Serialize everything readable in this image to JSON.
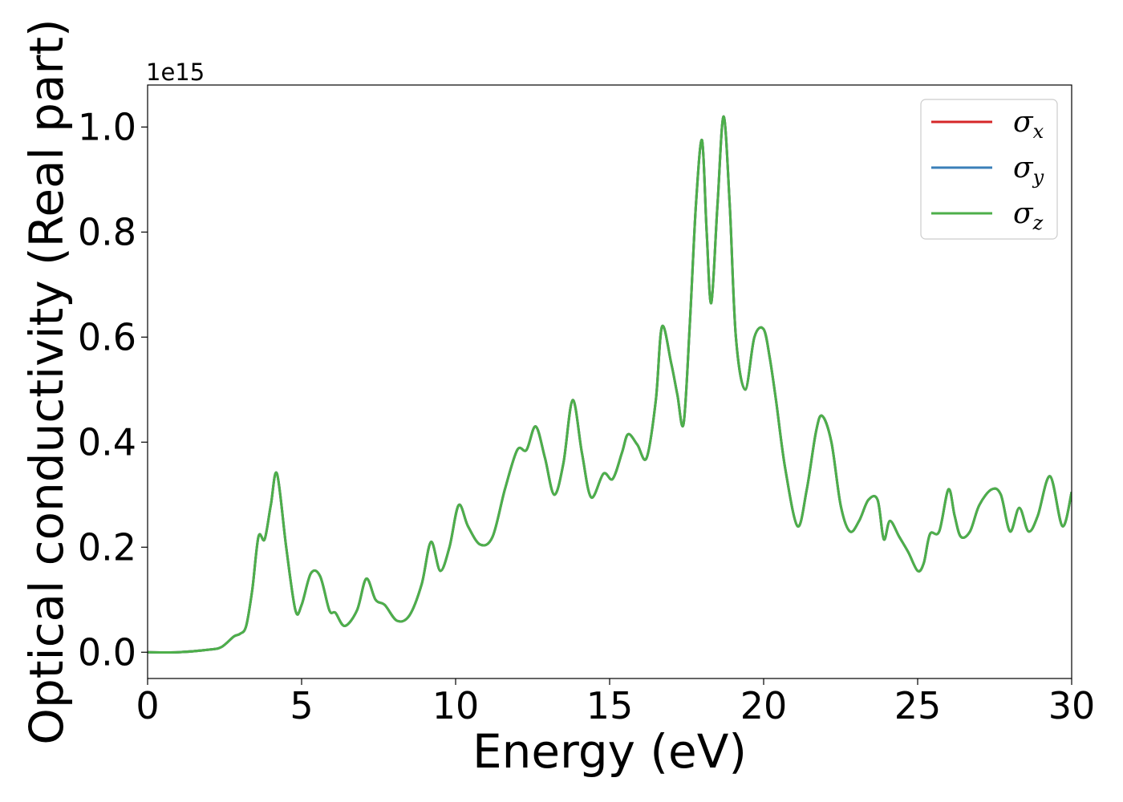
{
  "chart_data": {
    "type": "line",
    "xlabel": "Energy (eV)",
    "ylabel": "Optical conductivity (Real part)",
    "y_offset_label": "1e15",
    "xlim": [
      0,
      30
    ],
    "ylim": [
      -0.05,
      1.08
    ],
    "x_ticks": [
      0,
      5,
      10,
      15,
      20,
      25,
      30
    ],
    "x_tick_labels": [
      "0",
      "5",
      "10",
      "15",
      "20",
      "25",
      "30"
    ],
    "y_ticks": [
      0.0,
      0.2,
      0.4,
      0.6,
      0.8,
      1.0
    ],
    "y_tick_labels": [
      "0.0",
      "0.2",
      "0.4",
      "0.6",
      "0.8",
      "1.0"
    ],
    "grid": false,
    "legend_position": "top-right",
    "legend": [
      {
        "symbol": "σ",
        "sub": "x",
        "color": "#d62728"
      },
      {
        "symbol": "σ",
        "sub": "y",
        "color": "#3a7fb8"
      },
      {
        "symbol": "σ",
        "sub": "z",
        "color": "#4daf4a"
      }
    ],
    "x": [
      0,
      1,
      2,
      2.4,
      2.8,
      3.0,
      3.2,
      3.4,
      3.6,
      3.8,
      4.0,
      4.2,
      4.5,
      4.8,
      5.0,
      5.3,
      5.6,
      5.9,
      6.1,
      6.4,
      6.8,
      7.1,
      7.4,
      7.7,
      8.1,
      8.5,
      8.9,
      9.2,
      9.5,
      9.8,
      10.1,
      10.4,
      10.8,
      11.2,
      11.6,
      12.0,
      12.3,
      12.6,
      12.9,
      13.2,
      13.5,
      13.8,
      14.1,
      14.4,
      14.8,
      15.1,
      15.4,
      15.6,
      15.9,
      16.2,
      16.5,
      16.7,
      17.0,
      17.2,
      17.4,
      17.6,
      17.8,
      18.0,
      18.15,
      18.3,
      18.5,
      18.7,
      18.9,
      19.1,
      19.4,
      19.7,
      20.0,
      20.2,
      20.4,
      20.7,
      21.1,
      21.4,
      21.7,
      21.9,
      22.2,
      22.5,
      22.8,
      23.1,
      23.4,
      23.7,
      23.9,
      24.1,
      24.4,
      24.7,
      25.0,
      25.2,
      25.4,
      25.7,
      26.0,
      26.2,
      26.4,
      26.7,
      27.0,
      27.4,
      27.7,
      28.0,
      28.3,
      28.6,
      28.9,
      29.3,
      29.7,
      30.0
    ],
    "series": [
      {
        "name": "σx",
        "color": "#d62728",
        "values": [
          0.0,
          0.0,
          0.005,
          0.01,
          0.03,
          0.035,
          0.05,
          0.12,
          0.22,
          0.215,
          0.28,
          0.34,
          0.2,
          0.08,
          0.09,
          0.15,
          0.145,
          0.08,
          0.075,
          0.05,
          0.08,
          0.14,
          0.1,
          0.09,
          0.06,
          0.07,
          0.13,
          0.21,
          0.155,
          0.2,
          0.28,
          0.24,
          0.205,
          0.22,
          0.31,
          0.385,
          0.385,
          0.43,
          0.37,
          0.3,
          0.36,
          0.48,
          0.38,
          0.295,
          0.34,
          0.33,
          0.38,
          0.415,
          0.395,
          0.37,
          0.48,
          0.62,
          0.55,
          0.49,
          0.435,
          0.62,
          0.85,
          0.975,
          0.8,
          0.665,
          0.85,
          1.02,
          0.85,
          0.6,
          0.5,
          0.6,
          0.615,
          0.56,
          0.48,
          0.35,
          0.24,
          0.31,
          0.42,
          0.45,
          0.4,
          0.28,
          0.23,
          0.25,
          0.29,
          0.29,
          0.215,
          0.25,
          0.22,
          0.19,
          0.155,
          0.17,
          0.225,
          0.23,
          0.31,
          0.26,
          0.22,
          0.23,
          0.28,
          0.31,
          0.3,
          0.23,
          0.275,
          0.23,
          0.26,
          0.335,
          0.24,
          0.305
        ]
      },
      {
        "name": "σy",
        "color": "#3a7fb8",
        "values": [
          0.0,
          0.0,
          0.005,
          0.01,
          0.03,
          0.035,
          0.05,
          0.12,
          0.22,
          0.215,
          0.28,
          0.34,
          0.2,
          0.08,
          0.09,
          0.15,
          0.145,
          0.08,
          0.075,
          0.05,
          0.08,
          0.14,
          0.1,
          0.09,
          0.06,
          0.07,
          0.13,
          0.21,
          0.155,
          0.2,
          0.28,
          0.24,
          0.205,
          0.22,
          0.31,
          0.385,
          0.385,
          0.43,
          0.37,
          0.3,
          0.36,
          0.48,
          0.38,
          0.295,
          0.34,
          0.33,
          0.38,
          0.415,
          0.395,
          0.37,
          0.48,
          0.62,
          0.55,
          0.49,
          0.435,
          0.62,
          0.85,
          0.975,
          0.8,
          0.665,
          0.85,
          1.02,
          0.85,
          0.6,
          0.5,
          0.6,
          0.615,
          0.56,
          0.48,
          0.35,
          0.24,
          0.31,
          0.42,
          0.45,
          0.4,
          0.28,
          0.23,
          0.25,
          0.29,
          0.29,
          0.215,
          0.25,
          0.22,
          0.19,
          0.155,
          0.17,
          0.225,
          0.23,
          0.31,
          0.26,
          0.22,
          0.23,
          0.28,
          0.31,
          0.3,
          0.23,
          0.275,
          0.23,
          0.26,
          0.335,
          0.24,
          0.305
        ]
      },
      {
        "name": "σz",
        "color": "#4daf4a",
        "values": [
          0.0,
          0.0,
          0.005,
          0.01,
          0.03,
          0.035,
          0.05,
          0.12,
          0.22,
          0.215,
          0.28,
          0.34,
          0.2,
          0.08,
          0.09,
          0.15,
          0.145,
          0.08,
          0.075,
          0.05,
          0.08,
          0.14,
          0.1,
          0.09,
          0.06,
          0.07,
          0.13,
          0.21,
          0.155,
          0.2,
          0.28,
          0.24,
          0.205,
          0.22,
          0.31,
          0.385,
          0.385,
          0.43,
          0.37,
          0.3,
          0.36,
          0.48,
          0.38,
          0.295,
          0.34,
          0.33,
          0.38,
          0.415,
          0.395,
          0.37,
          0.48,
          0.62,
          0.55,
          0.49,
          0.435,
          0.62,
          0.85,
          0.975,
          0.8,
          0.665,
          0.85,
          1.02,
          0.85,
          0.6,
          0.5,
          0.6,
          0.615,
          0.56,
          0.48,
          0.35,
          0.24,
          0.31,
          0.42,
          0.45,
          0.4,
          0.28,
          0.23,
          0.25,
          0.29,
          0.29,
          0.215,
          0.25,
          0.22,
          0.19,
          0.155,
          0.17,
          0.225,
          0.23,
          0.31,
          0.26,
          0.22,
          0.23,
          0.28,
          0.31,
          0.3,
          0.23,
          0.275,
          0.23,
          0.26,
          0.335,
          0.24,
          0.305
        ]
      }
    ]
  }
}
